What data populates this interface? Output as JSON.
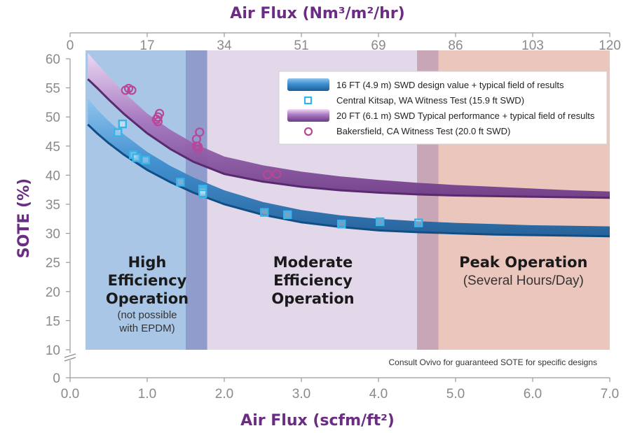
{
  "chart_data": {
    "type": "scatter",
    "title": "",
    "xlabel": "Air Flux (scfm/ft²)",
    "ylabel": "SOTE (%)",
    "top_axis_label": "Air Flux (Nm³/m²/hr)",
    "xlim": [
      0,
      7.0
    ],
    "ylim": [
      0,
      60
    ],
    "x_ticks": [
      "0.0",
      "1.0",
      "2.0",
      "3.0",
      "4.0",
      "5.0",
      "6.0",
      "7.0"
    ],
    "y_ticks": [
      "0",
      "10",
      "15",
      "20",
      "25",
      "30",
      "35",
      "40",
      "45",
      "50",
      "55",
      "60"
    ],
    "top_ticks": [
      "0",
      "17",
      "34",
      "51",
      "69",
      "86",
      "103",
      "120"
    ],
    "axis_break": true,
    "grid": false,
    "legend_position": "top-right",
    "zones": [
      {
        "name": "high",
        "title_lines": [
          "High",
          "Efficiency",
          "Operation"
        ],
        "subtitle_lines": [
          "(not possible",
          "with EPDM)"
        ],
        "x_range": [
          0.2,
          1.5
        ],
        "color": "#a9c6e6"
      },
      {
        "name": "overlap-1",
        "x_range": [
          1.5,
          1.78
        ],
        "color": "#8f9ccc"
      },
      {
        "name": "moderate",
        "title_lines": [
          "Moderate",
          "Efficiency",
          "Operation"
        ],
        "subtitle_lines": [],
        "x_range": [
          1.78,
          4.5
        ],
        "color": "#e3d8ea"
      },
      {
        "name": "overlap-2",
        "x_range": [
          4.5,
          4.78
        ],
        "color": "#c9a6b6"
      },
      {
        "name": "peak",
        "title_lines": [
          "Peak Operation"
        ],
        "subtitle_lines": [
          "(Several Hours/Day)"
        ],
        "x_range": [
          4.78,
          7.0
        ],
        "color": "#ebc6bd"
      }
    ],
    "series": [
      {
        "name": "16 FT (4.9 m) SWD design value + typical field of results",
        "kind": "band",
        "color": "#2f7fc4",
        "dark": "#0f4f86",
        "x": [
          0.23,
          0.35,
          0.5,
          0.7,
          1.0,
          1.3,
          1.6,
          2.0,
          2.5,
          3.0,
          3.5,
          4.0,
          4.5,
          5.0,
          5.5,
          6.0,
          6.5,
          7.0
        ],
        "lower": [
          48.7,
          47.2,
          45.5,
          43.5,
          40.9,
          38.8,
          37.0,
          35.0,
          33.2,
          31.9,
          31.1,
          30.5,
          30.2,
          30.0,
          29.8,
          29.7,
          29.6,
          29.5
        ],
        "upper": [
          53.2,
          51.3,
          49.3,
          47.0,
          44.0,
          41.6,
          39.6,
          37.4,
          35.4,
          34.0,
          33.1,
          32.5,
          32.1,
          31.8,
          31.6,
          31.4,
          31.3,
          31.2
        ]
      },
      {
        "name": "Central Kitsap, WA Witness Test (15.9 ft SWD)",
        "kind": "points",
        "marker": "square",
        "color": "#35b6ea",
        "x": [
          0.62,
          0.68,
          0.82,
          0.86,
          0.98,
          1.43,
          1.72,
          1.72,
          1.72,
          2.52,
          2.82,
          3.52,
          4.02,
          4.52
        ],
        "y": [
          47.3,
          48.8,
          43.5,
          43.0,
          42.6,
          38.8,
          37.6,
          37.2,
          36.8,
          33.6,
          33.2,
          31.6,
          32.0,
          31.8
        ]
      },
      {
        "name": "20 FT (6.1 m) SWD Typical performance + typical field of results",
        "kind": "band",
        "color": "#9b6bb3",
        "dark": "#5a2a6e",
        "x": [
          0.23,
          0.35,
          0.5,
          0.7,
          1.0,
          1.3,
          1.6,
          2.0,
          2.5,
          3.0,
          3.5,
          4.0,
          4.5,
          5.0,
          5.5,
          6.0,
          6.5,
          7.0
        ],
        "lower": [
          56.5,
          55.0,
          53.0,
          50.5,
          47.2,
          44.5,
          42.3,
          40.2,
          38.9,
          38.0,
          37.4,
          37.0,
          36.7,
          36.5,
          36.4,
          36.3,
          36.2,
          36.1
        ],
        "upper": [
          61.0,
          59.2,
          57.0,
          54.2,
          50.6,
          47.8,
          45.5,
          43.2,
          41.7,
          40.6,
          39.8,
          39.2,
          38.7,
          38.3,
          38.0,
          37.7,
          37.4,
          37.2
        ]
      },
      {
        "name": "Bakersfield, CA Witness Test (20.0 ft SWD)",
        "kind": "points",
        "marker": "circle",
        "color": "#b8479a",
        "x": [
          0.72,
          0.76,
          0.8,
          1.12,
          1.14,
          1.14,
          1.16,
          1.64,
          1.64,
          1.66,
          1.66,
          1.68,
          2.56,
          2.68
        ],
        "y": [
          54.6,
          54.9,
          54.6,
          49.6,
          50.0,
          49.2,
          50.6,
          46.2,
          45.0,
          44.5,
          44.9,
          47.4,
          40.1,
          40.2
        ]
      }
    ],
    "note": "Consult Ovivo for guaranteed SOTE for specific designs"
  }
}
